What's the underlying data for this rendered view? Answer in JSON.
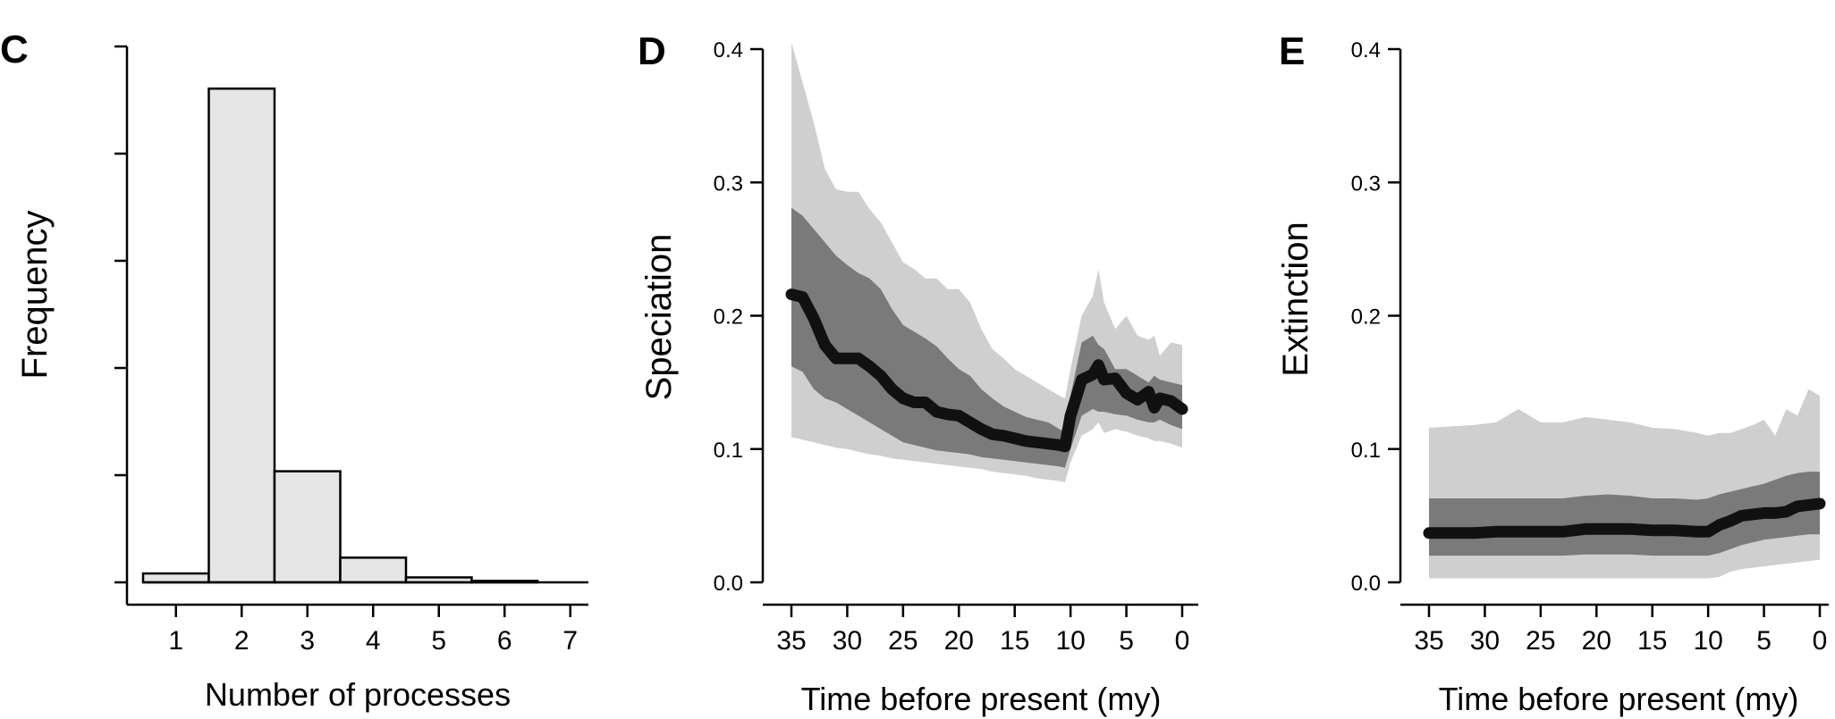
{
  "panels": {
    "C": {
      "letter": "C"
    },
    "D": {
      "letter": "D"
    },
    "E": {
      "letter": "E"
    }
  },
  "chart_data": [
    {
      "panel": "C",
      "type": "bar",
      "xlabel": "Number of processes",
      "ylabel": "Frequency",
      "categories": [
        "1",
        "2",
        "3",
        "4",
        "5",
        "6",
        "7"
      ],
      "values": [
        0.018,
        1.0,
        0.225,
        0.05,
        0.01,
        0.003,
        0
      ],
      "ylim": [
        0,
        1.08
      ],
      "y_tick_count": 5,
      "y_tick_labels_shown": false,
      "bar_fill": "#e4e5e4",
      "bar_stroke": "#000000",
      "grid": false
    },
    {
      "panel": "D",
      "type": "area",
      "xlabel": "Time before present (my)",
      "ylabel": "Speciation",
      "x_reversed": true,
      "xlim": [
        35,
        0
      ],
      "ylim": [
        0,
        0.4
      ],
      "x_ticks": [
        35,
        30,
        25,
        20,
        15,
        10,
        5,
        0
      ],
      "y_ticks": [
        "0.0",
        "0.1",
        "0.2",
        "0.3",
        "0.4"
      ],
      "x": [
        35,
        34,
        33,
        32,
        31,
        30,
        29,
        28,
        27,
        26,
        25,
        24,
        23,
        22,
        21,
        20,
        19,
        18,
        17,
        16,
        15,
        14,
        13,
        12,
        11,
        10.5,
        10,
        9,
        8,
        7.5,
        7,
        6,
        5,
        4,
        3,
        2.5,
        2,
        1,
        0
      ],
      "series": [
        {
          "role": "mean",
          "color": "#111111",
          "values": [
            0.216,
            0.214,
            0.198,
            0.178,
            0.168,
            0.168,
            0.168,
            0.162,
            0.155,
            0.145,
            0.138,
            0.135,
            0.135,
            0.128,
            0.126,
            0.125,
            0.12,
            0.115,
            0.111,
            0.11,
            0.108,
            0.106,
            0.105,
            0.104,
            0.103,
            0.102,
            0.125,
            0.152,
            0.156,
            0.163,
            0.152,
            0.153,
            0.142,
            0.137,
            0.143,
            0.131,
            0.138,
            0.136,
            0.13
          ]
        },
        {
          "role": "inner-band",
          "color": "#7a7a7a",
          "upper": [
            0.281,
            0.275,
            0.265,
            0.255,
            0.245,
            0.238,
            0.232,
            0.228,
            0.22,
            0.205,
            0.193,
            0.188,
            0.183,
            0.177,
            0.168,
            0.16,
            0.155,
            0.145,
            0.138,
            0.132,
            0.128,
            0.124,
            0.122,
            0.12,
            0.115,
            0.113,
            0.14,
            0.18,
            0.185,
            0.178,
            0.175,
            0.16,
            0.16,
            0.155,
            0.15,
            0.155,
            0.152,
            0.15,
            0.148
          ],
          "lower": [
            0.162,
            0.158,
            0.145,
            0.138,
            0.135,
            0.13,
            0.125,
            0.12,
            0.115,
            0.11,
            0.105,
            0.103,
            0.101,
            0.099,
            0.098,
            0.097,
            0.096,
            0.094,
            0.093,
            0.092,
            0.091,
            0.09,
            0.089,
            0.088,
            0.087,
            0.086,
            0.1,
            0.125,
            0.13,
            0.128,
            0.128,
            0.126,
            0.125,
            0.122,
            0.12,
            0.12,
            0.122,
            0.118,
            0.115
          ]
        },
        {
          "role": "outer-band",
          "color": "#cfcfcf",
          "upper": [
            0.405,
            0.375,
            0.345,
            0.31,
            0.295,
            0.293,
            0.293,
            0.28,
            0.27,
            0.255,
            0.24,
            0.235,
            0.228,
            0.228,
            0.22,
            0.22,
            0.21,
            0.19,
            0.175,
            0.168,
            0.16,
            0.155,
            0.15,
            0.145,
            0.14,
            0.138,
            0.16,
            0.2,
            0.215,
            0.235,
            0.21,
            0.19,
            0.2,
            0.185,
            0.182,
            0.185,
            0.17,
            0.18,
            0.178
          ],
          "lower": [
            0.109,
            0.107,
            0.105,
            0.103,
            0.101,
            0.1,
            0.098,
            0.096,
            0.095,
            0.093,
            0.092,
            0.091,
            0.09,
            0.089,
            0.088,
            0.087,
            0.086,
            0.085,
            0.083,
            0.082,
            0.081,
            0.08,
            0.078,
            0.077,
            0.076,
            0.075,
            0.09,
            0.11,
            0.115,
            0.12,
            0.112,
            0.115,
            0.113,
            0.11,
            0.108,
            0.106,
            0.106,
            0.104,
            0.101
          ]
        }
      ],
      "grid": false
    },
    {
      "panel": "E",
      "type": "area",
      "xlabel": "Time before present (my)",
      "ylabel": "Extinction",
      "x_reversed": true,
      "xlim": [
        35,
        0
      ],
      "ylim": [
        0,
        0.4
      ],
      "x_ticks": [
        35,
        30,
        25,
        20,
        15,
        10,
        5,
        0
      ],
      "y_ticks": [
        "0.0",
        "0.1",
        "0.2",
        "0.3",
        "0.4"
      ],
      "x": [
        35,
        33,
        31,
        29,
        27,
        25,
        23,
        21,
        19,
        17,
        15,
        13,
        11,
        10,
        9,
        8,
        7,
        6,
        5,
        4,
        3,
        2,
        1,
        0
      ],
      "series": [
        {
          "role": "mean",
          "color": "#111111",
          "values": [
            0.037,
            0.037,
            0.037,
            0.038,
            0.038,
            0.038,
            0.038,
            0.04,
            0.04,
            0.04,
            0.039,
            0.039,
            0.038,
            0.038,
            0.043,
            0.046,
            0.05,
            0.051,
            0.052,
            0.052,
            0.053,
            0.057,
            0.058,
            0.059
          ]
        },
        {
          "role": "inner-band",
          "color": "#7a7a7a",
          "upper": [
            0.063,
            0.063,
            0.063,
            0.063,
            0.063,
            0.063,
            0.063,
            0.065,
            0.066,
            0.065,
            0.063,
            0.063,
            0.062,
            0.063,
            0.066,
            0.068,
            0.07,
            0.072,
            0.074,
            0.077,
            0.08,
            0.082,
            0.083,
            0.083
          ],
          "lower": [
            0.02,
            0.02,
            0.02,
            0.02,
            0.02,
            0.02,
            0.02,
            0.021,
            0.021,
            0.021,
            0.02,
            0.02,
            0.02,
            0.02,
            0.022,
            0.025,
            0.028,
            0.03,
            0.032,
            0.033,
            0.034,
            0.035,
            0.036,
            0.036
          ]
        },
        {
          "role": "outer-band",
          "color": "#cfcfcf",
          "upper": [
            0.116,
            0.117,
            0.118,
            0.12,
            0.13,
            0.12,
            0.12,
            0.124,
            0.122,
            0.12,
            0.116,
            0.115,
            0.112,
            0.11,
            0.112,
            0.112,
            0.115,
            0.118,
            0.122,
            0.11,
            0.13,
            0.125,
            0.145,
            0.14
          ],
          "lower": [
            0.003,
            0.003,
            0.003,
            0.003,
            0.003,
            0.003,
            0.003,
            0.003,
            0.003,
            0.003,
            0.003,
            0.003,
            0.003,
            0.003,
            0.004,
            0.008,
            0.01,
            0.011,
            0.012,
            0.013,
            0.014,
            0.015,
            0.016,
            0.017
          ]
        }
      ],
      "grid": false
    }
  ]
}
